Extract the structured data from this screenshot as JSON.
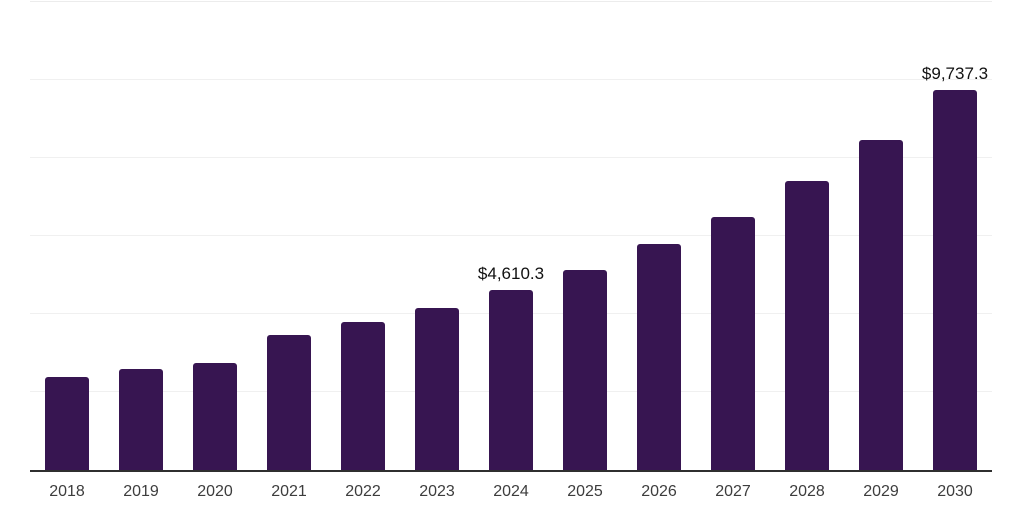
{
  "chart_data": {
    "type": "bar",
    "title": "",
    "xlabel": "",
    "ylabel": "",
    "categories": [
      "2018",
      "2019",
      "2020",
      "2021",
      "2022",
      "2023",
      "2024",
      "2025",
      "2026",
      "2027",
      "2028",
      "2029",
      "2030"
    ],
    "values": [
      2390,
      2590,
      2745,
      3450,
      3790,
      4150,
      4610.3,
      5120,
      5785,
      6500,
      7420,
      8465,
      9737.3
    ],
    "data_labels": [
      null,
      null,
      null,
      null,
      null,
      null,
      "$4,610.3",
      null,
      null,
      null,
      null,
      null,
      "$9,737.3"
    ],
    "ylim": [
      0,
      12000
    ],
    "gridline_step": 2000,
    "grid": "horizontal-only",
    "legend": "none",
    "bar_color": "#371551",
    "value_label_color": "#111111",
    "tick_label_color": "#3d3d3d",
    "gridline_color": "#f0f0f0",
    "axis_line_color": "#2f2f2f",
    "background_color": "#ffffff"
  }
}
